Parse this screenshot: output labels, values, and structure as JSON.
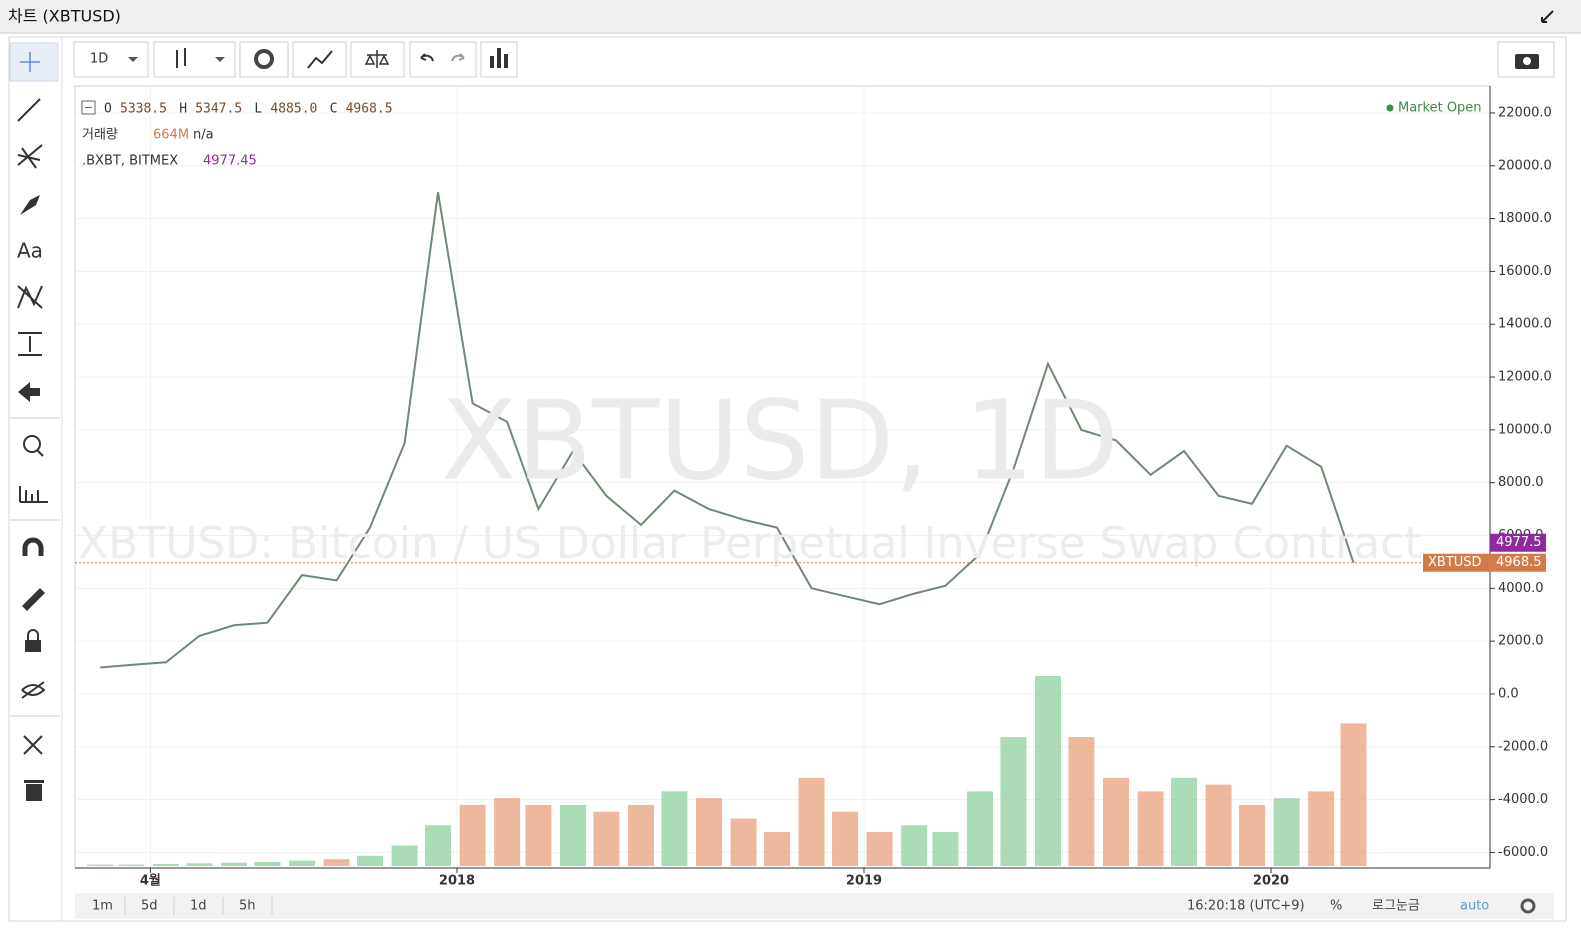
{
  "window": {
    "title": "차트 (XBTUSD)"
  },
  "toolbar": {
    "interval": "1D"
  },
  "legend": {
    "ohlc": [
      {
        "label": "O",
        "value": "5338.5"
      },
      {
        "label": "H",
        "value": "5347.5"
      },
      {
        "label": "L",
        "value": "4885.0"
      },
      {
        "label": "C",
        "value": "4968.5"
      }
    ],
    "volume_label": "거래량",
    "volume_value": "664M",
    "volume_change": "n/a",
    "index_label": ".BXBT, BITMEX",
    "index_value": "4977.45",
    "status": "Market Open"
  },
  "watermark": {
    "symbol": "XBTUSD, 1D",
    "description": "XBTUSD: Bitcoin / US Dollar Perpetual Inverse Swap Contract"
  },
  "price_labels": {
    "index": "4977.5",
    "last": "4968.5"
  },
  "chart_data": {
    "type": "line",
    "x": [
      "2017-02",
      "2017-03",
      "2017-04",
      "2017-05",
      "2017-06",
      "2017-07",
      "2017-08",
      "2017-09",
      "2017-10",
      "2017-11",
      "2017-12",
      "2018-01",
      "2018-02",
      "2018-03",
      "2018-04",
      "2018-05",
      "2018-06",
      "2018-07",
      "2018-08",
      "2018-09",
      "2018-10",
      "2018-11",
      "2018-12",
      "2019-01",
      "2019-02",
      "2019-03",
      "2019-04",
      "2019-05",
      "2019-06",
      "2019-07",
      "2019-08",
      "2019-09",
      "2019-10",
      "2019-11",
      "2019-12",
      "2020-01",
      "2020-02",
      "2020-03"
    ],
    "series": [
      {
        "name": "XBTUSD",
        "color": "#6f8a72",
        "values": [
          1000,
          1100,
          1200,
          2200,
          2600,
          2700,
          4500,
          4300,
          6300,
          9500,
          19000,
          11000,
          10300,
          7000,
          9200,
          7500,
          6400,
          7700,
          7000,
          6600,
          6300,
          4000,
          3700,
          3400,
          3800,
          4100,
          5300,
          8500,
          12500,
          10000,
          9600,
          8300,
          9200,
          7500,
          7200,
          9400,
          8600,
          4968.5
        ]
      }
    ],
    "volume": {
      "up_color": "#8fcf9f",
      "down_color": "#e8a07f",
      "values": [
        20,
        20,
        30,
        40,
        50,
        60,
        80,
        100,
        150,
        300,
        600,
        900,
        1000,
        900,
        900,
        800,
        900,
        1100,
        1000,
        700,
        500,
        1300,
        800,
        500,
        600,
        500,
        1100,
        1900,
        2800,
        1900,
        1300,
        1100,
        1300,
        1200,
        900,
        1000,
        1100,
        2100
      ]
    },
    "ylim": [
      -6590,
      23020
    ],
    "yticks": [
      {
        "value": 22000,
        "label": "22000.0"
      },
      {
        "value": 20000,
        "label": "20000.0"
      },
      {
        "value": 18000,
        "label": "18000.0"
      },
      {
        "value": 16000,
        "label": "16000.0"
      },
      {
        "value": 14000,
        "label": "14000.0"
      },
      {
        "value": 12000,
        "label": "12000.0"
      },
      {
        "value": 10000,
        "label": "10000.0"
      },
      {
        "value": 8000,
        "label": "8000.0"
      },
      {
        "value": 6000,
        "label": "6000.0"
      },
      {
        "value": 4000,
        "label": "4000.0"
      },
      {
        "value": 2000,
        "label": "2000.0"
      },
      {
        "value": 0,
        "label": "0.0"
      },
      {
        "value": -2000,
        "label": "-2000.0"
      },
      {
        "value": -4000,
        "label": "-4000.0"
      },
      {
        "value": -6000,
        "label": "-6000.0"
      }
    ],
    "xticks": [
      {
        "value": "2017-04",
        "label": "4월"
      },
      {
        "value": "2018-01",
        "label": "2018"
      },
      {
        "value": "2019-01",
        "label": "2019"
      },
      {
        "value": "2020-01",
        "label": "2020"
      }
    ],
    "grid": true
  },
  "bottom_bar": {
    "ranges": [
      "1m",
      "5d",
      "1d",
      "5h"
    ],
    "clock": "16:20:18 (UTC+9)",
    "percent": "%",
    "log": "로그눈금",
    "auto": "auto"
  }
}
